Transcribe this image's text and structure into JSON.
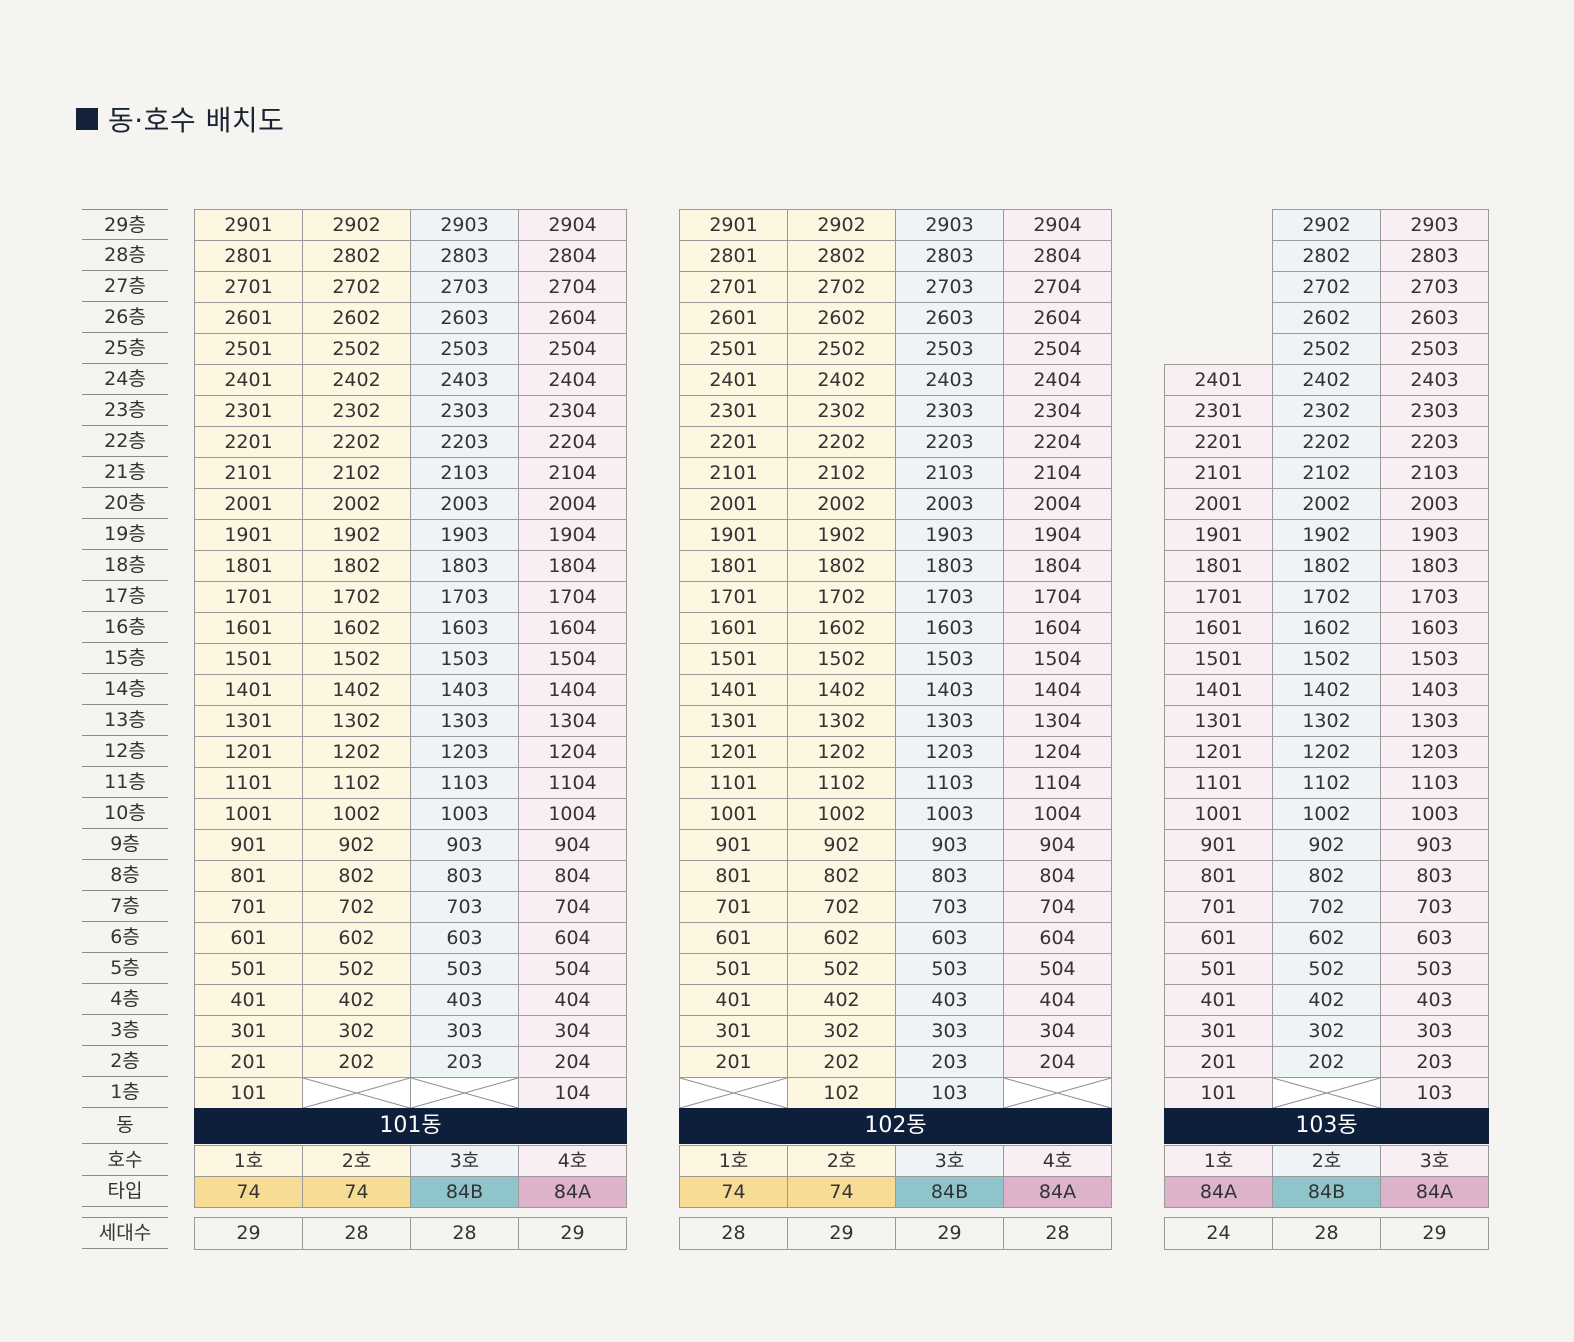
{
  "title": "동·호수 배치도",
  "row_labels": {
    "floors": [
      "29층",
      "28층",
      "27층",
      "26층",
      "25층",
      "24층",
      "23층",
      "22층",
      "21층",
      "20층",
      "19층",
      "18층",
      "17층",
      "16층",
      "15층",
      "14층",
      "13층",
      "12층",
      "11층",
      "10층",
      "9층",
      "8층",
      "7층",
      "6층",
      "5층",
      "4층",
      "3층",
      "2층",
      "1층"
    ],
    "dong": "동",
    "hosu": "호수",
    "type": "타입",
    "count": "세대수"
  },
  "buildings": [
    {
      "name": "101동",
      "units": [
        {
          "label": "1호",
          "type": "74",
          "count": "29",
          "color": "#fdf6e0",
          "top_floor": 29,
          "missing_floors": []
        },
        {
          "label": "2호",
          "type": "74",
          "count": "28",
          "color": "#fdf6e0",
          "top_floor": 29,
          "missing_floors": [
            1
          ]
        },
        {
          "label": "3호",
          "type": "84B",
          "count": "28",
          "color": "#eef3f6",
          "top_floor": 29,
          "missing_floors": [
            1
          ]
        },
        {
          "label": "4호",
          "type": "84A",
          "count": "29",
          "color": "#f9eef3",
          "top_floor": 29,
          "missing_floors": []
        }
      ]
    },
    {
      "name": "102동",
      "units": [
        {
          "label": "1호",
          "type": "74",
          "count": "28",
          "color": "#fdf6e0",
          "top_floor": 29,
          "missing_floors": [
            1
          ]
        },
        {
          "label": "2호",
          "type": "74",
          "count": "29",
          "color": "#fdf6e0",
          "top_floor": 29,
          "missing_floors": []
        },
        {
          "label": "3호",
          "type": "84B",
          "count": "29",
          "color": "#eef3f6",
          "top_floor": 29,
          "missing_floors": []
        },
        {
          "label": "4호",
          "type": "84A",
          "count": "28",
          "color": "#f9eef3",
          "top_floor": 29,
          "missing_floors": [
            1
          ]
        }
      ]
    },
    {
      "name": "103동",
      "units": [
        {
          "label": "1호",
          "type": "84A",
          "count": "24",
          "color": "#f9eef3",
          "top_floor": 24,
          "missing_floors": []
        },
        {
          "label": "2호",
          "type": "84B",
          "count": "28",
          "color": "#eef3f6",
          "top_floor": 29,
          "missing_floors": [
            1
          ]
        },
        {
          "label": "3호",
          "type": "84A",
          "count": "29",
          "color": "#f9eef3",
          "top_floor": 29,
          "missing_floors": []
        }
      ]
    }
  ],
  "colors": {
    "dong_bar": "#0e1f3b",
    "type_74": "#f6dc94",
    "type_84B": "#90c4cb",
    "type_84A": "#dcb3cb"
  }
}
